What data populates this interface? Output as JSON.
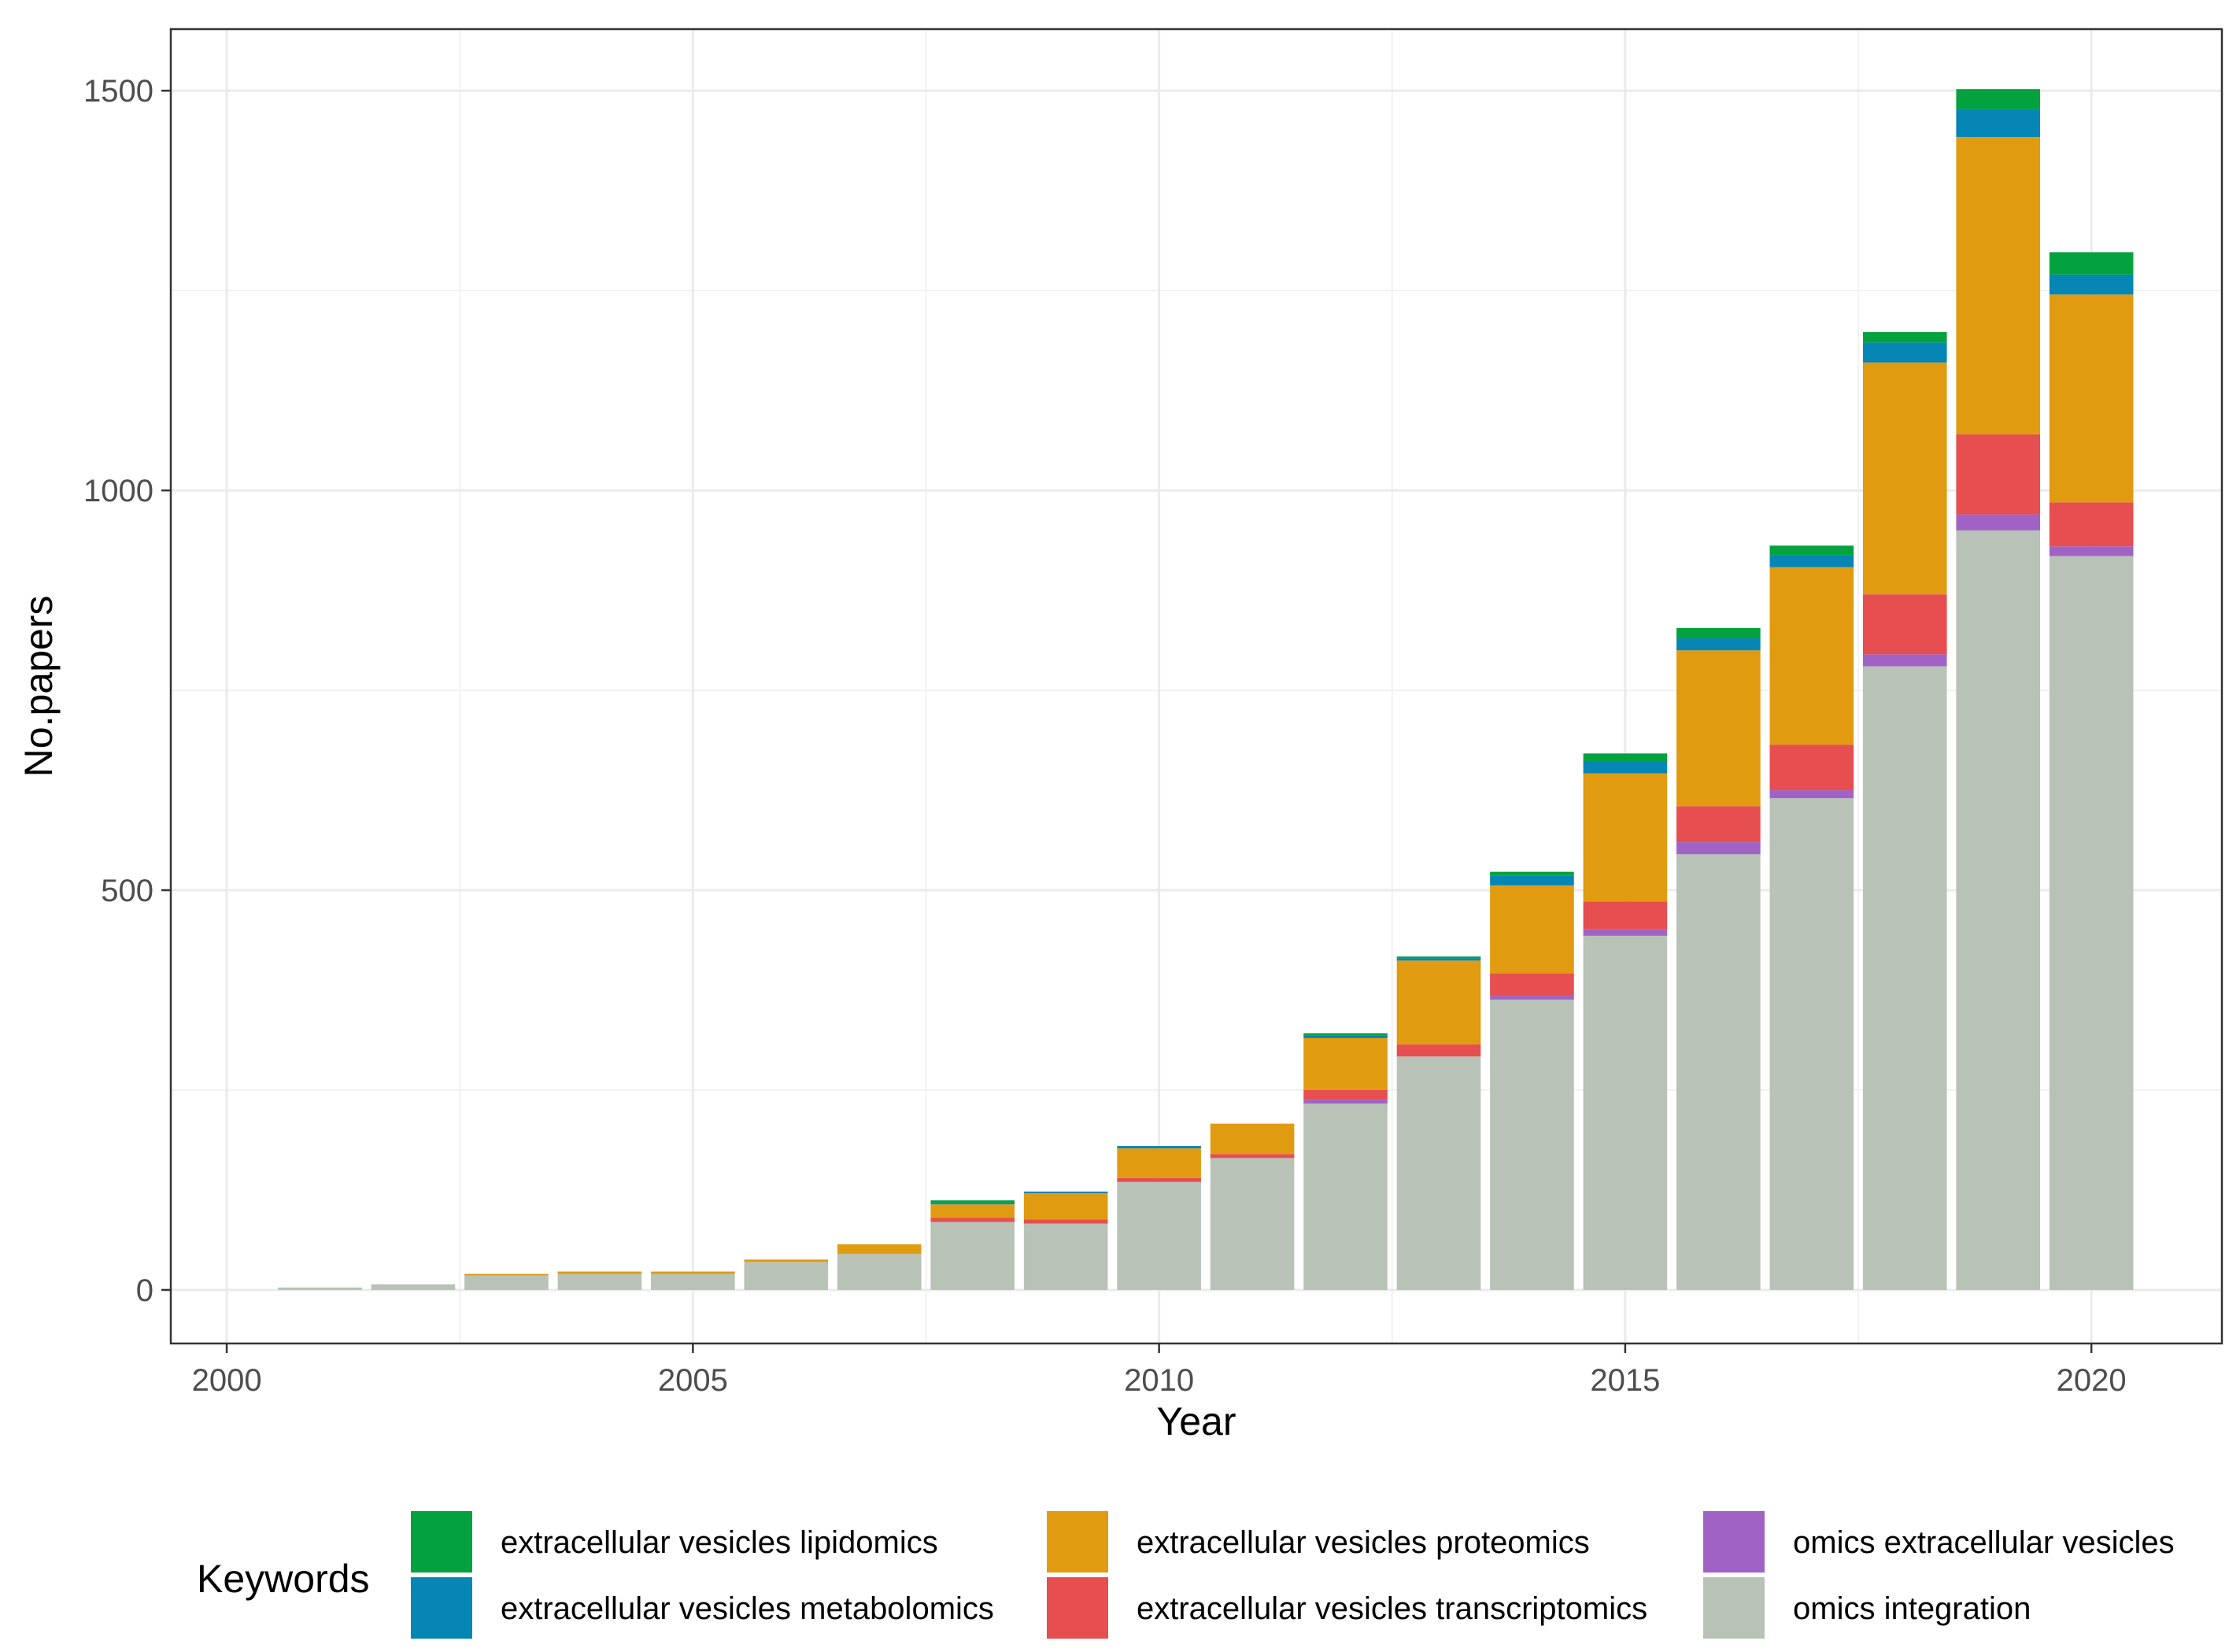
{
  "chart_data": {
    "type": "bar",
    "stacked": true,
    "title": "",
    "xlabel": "Year",
    "ylabel": "No.papers",
    "xlim": [
      1999.4,
      2021.4
    ],
    "ylim": [
      -67,
      1577
    ],
    "x_ticks": [
      2000,
      2005,
      2010,
      2015,
      2020
    ],
    "y_ticks": [
      0,
      500,
      1000,
      1500
    ],
    "grid": true,
    "legend": {
      "title": "Keywords",
      "placement": "bottom"
    },
    "categories": [
      2001,
      2002,
      2003,
      2004,
      2005,
      2006,
      2007,
      2008,
      2009,
      2010,
      2011,
      2012,
      2013,
      2014,
      2015,
      2016,
      2017,
      2018,
      2019,
      2020
    ],
    "series": [
      {
        "name": "omics integration",
        "color": "#B8C2B7",
        "values": [
          3,
          7,
          18,
          20,
          20,
          35,
          45,
          85,
          83,
          135,
          165,
          233,
          292,
          363,
          443,
          545,
          615,
          780,
          950,
          918
        ]
      },
      {
        "name": "omics extracellular vesicles",
        "color": "#A063C5",
        "values": [
          0,
          0,
          0,
          0,
          0,
          0,
          0,
          0,
          0,
          0,
          0,
          5,
          0,
          5,
          8,
          15,
          10,
          15,
          20,
          12
        ]
      },
      {
        "name": "extracellular vesicles transcriptomics",
        "color": "#E64E4F",
        "values": [
          0,
          0,
          0,
          0,
          0,
          0,
          0,
          5,
          5,
          5,
          5,
          12,
          15,
          28,
          35,
          45,
          57,
          75,
          100,
          55
        ]
      },
      {
        "name": "extracellular vesicles proteomics",
        "color": "#E19B10",
        "values": [
          0,
          0,
          2,
          3,
          3,
          3,
          12,
          17,
          33,
          37,
          38,
          65,
          105,
          110,
          160,
          195,
          222,
          290,
          372,
          260
        ]
      },
      {
        "name": "extracellular vesicles metabolomics",
        "color": "#0586B5",
        "values": [
          0,
          0,
          0,
          0,
          0,
          0,
          0,
          2,
          2,
          3,
          0,
          3,
          3,
          12,
          15,
          15,
          15,
          25,
          35,
          25
        ]
      },
      {
        "name": "extracellular vesicles lipidomics",
        "color": "#04A23F",
        "values": [
          0,
          0,
          0,
          0,
          0,
          0,
          0,
          3,
          0,
          0,
          0,
          3,
          2,
          5,
          10,
          13,
          12,
          13,
          25,
          28
        ]
      }
    ]
  }
}
